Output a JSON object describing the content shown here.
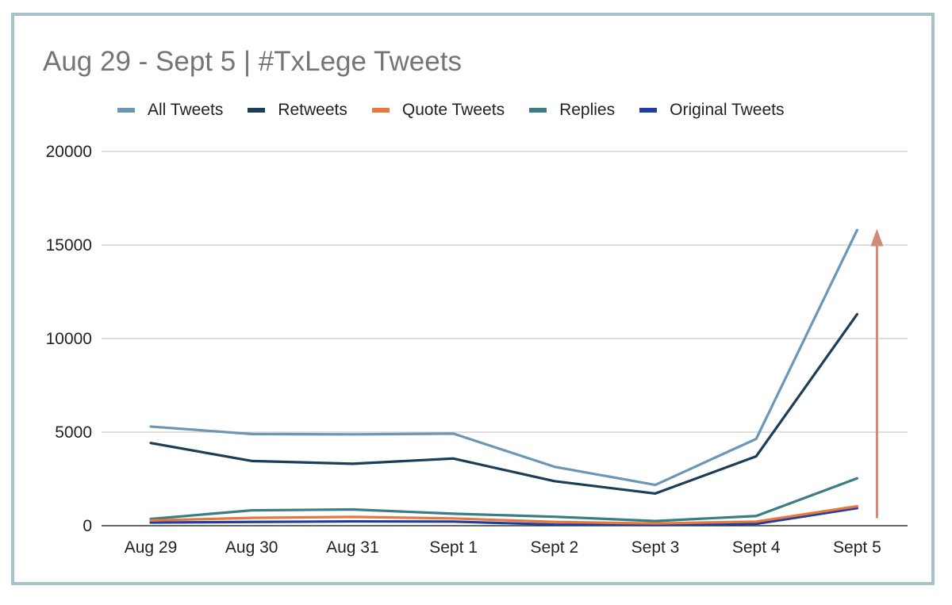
{
  "chart_data": {
    "type": "line",
    "title": "Aug 29 - Sept 5 | #TxLege Tweets",
    "xlabel": "",
    "ylabel": "",
    "categories": [
      "Aug 29",
      "Aug 30",
      "Aug 31",
      "Sept 1",
      "Sept 2",
      "Sept 3",
      "Sept 4",
      "Sept 5"
    ],
    "ylim": [
      0,
      20000
    ],
    "yticks": [
      "0",
      "5000",
      "10000",
      "15000",
      "20000"
    ],
    "grid": true,
    "legend": "top",
    "series": [
      {
        "name": "All Tweets",
        "color": "#6b97b7",
        "values": [
          5300,
          4900,
          4880,
          4920,
          3150,
          2180,
          4640,
          15800
        ]
      },
      {
        "name": "Retweets",
        "color": "#1b3d57",
        "values": [
          4420,
          3460,
          3310,
          3590,
          2380,
          1720,
          3710,
          11300
        ]
      },
      {
        "name": "Quote Tweets",
        "color": "#e8773e",
        "values": [
          280,
          420,
          470,
          390,
          200,
          120,
          220,
          1040
        ]
      },
      {
        "name": "Replies",
        "color": "#3b7d84",
        "values": [
          360,
          820,
          870,
          640,
          480,
          250,
          520,
          2530
        ]
      },
      {
        "name": "Original Tweets",
        "color": "#1f3fa0",
        "values": [
          170,
          200,
          230,
          220,
          60,
          40,
          100,
          940
        ]
      }
    ],
    "annotation": {
      "type": "arrow",
      "color": "#d28a76",
      "category": "Sept 5",
      "from": 400,
      "to": 15700
    }
  }
}
